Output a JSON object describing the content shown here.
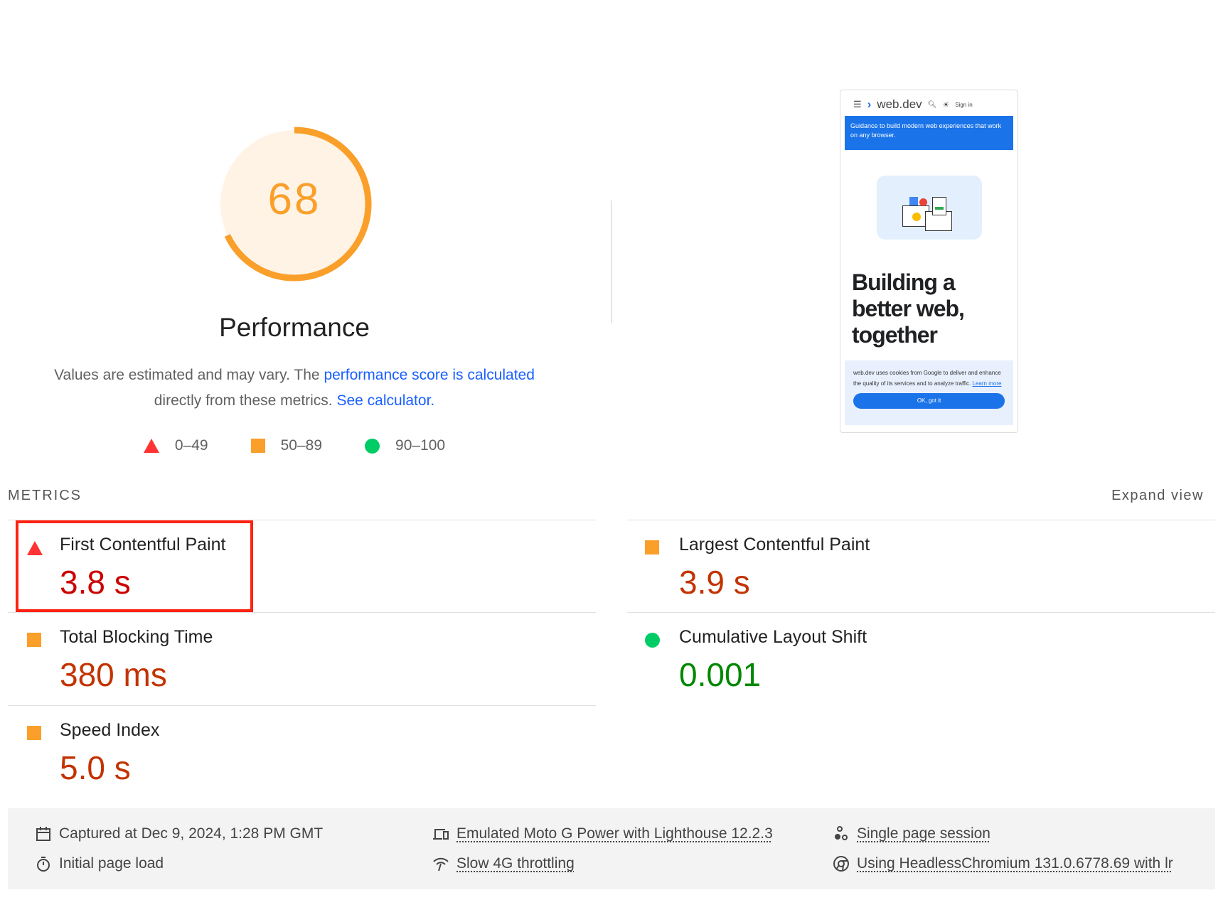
{
  "gauge": {
    "score": 68,
    "label": "Performance",
    "color": "#fa9f2a",
    "bg": "#fff3e6"
  },
  "description": {
    "prefix": "Values are estimated and may vary. The ",
    "link1": "performance score is calculated",
    "middle": " directly from these metrics. ",
    "link2": "See calculator."
  },
  "legend": [
    {
      "range": "0–49",
      "shape": "triangle",
      "color": "#ff3333"
    },
    {
      "range": "50–89",
      "shape": "square",
      "color": "#fa9f2a"
    },
    {
      "range": "90–100",
      "shape": "circle",
      "color": "#00cc66"
    }
  ],
  "screenshot": {
    "logo": "web.dev",
    "signin": "Sign in",
    "banner": "Guidance to build modern web experiences that work on any browser.",
    "headline": "Building a better web, together",
    "cookie": "web.dev uses cookies from Google to deliver and enhance the quality of its services and to analyze traffic.",
    "learn_more": "Learn more",
    "ok": "OK, got it"
  },
  "metrics_header": "METRICS",
  "expand_view": "Expand view",
  "metrics": [
    {
      "title": "First Contentful Paint",
      "value": "3.8 s",
      "rating": "fail"
    },
    {
      "title": "Largest Contentful Paint",
      "value": "3.9 s",
      "rating": "average"
    },
    {
      "title": "Total Blocking Time",
      "value": "380 ms",
      "rating": "average"
    },
    {
      "title": "Cumulative Layout Shift",
      "value": "0.001",
      "rating": "pass"
    },
    {
      "title": "Speed Index",
      "value": "5.0 s",
      "rating": "average"
    }
  ],
  "footer": {
    "captured": "Captured at Dec 9, 2024, 1:28 PM GMT",
    "load": "Initial page load",
    "device": "Emulated Moto G Power with Lighthouse 12.2.3",
    "throttling": "Slow 4G throttling",
    "session": "Single page session",
    "browser": "Using HeadlessChromium 131.0.6778.69 with lr"
  }
}
